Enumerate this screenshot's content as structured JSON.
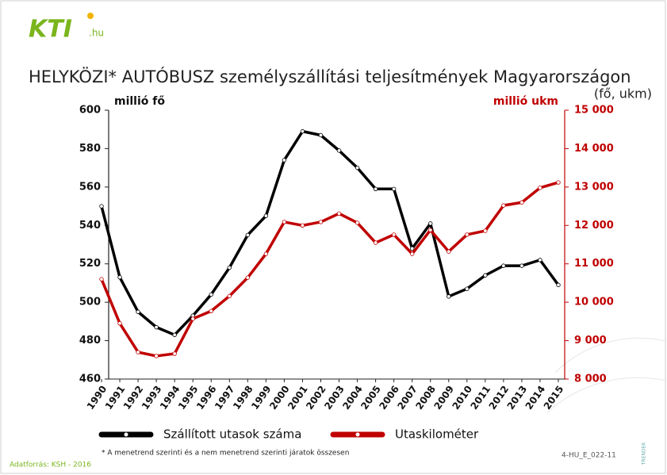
{
  "logo": {
    "text": "KTI",
    "suffix": ".hu"
  },
  "chart_data": {
    "type": "line",
    "title": "HELYKÖZI* AUTÓBUSZ személyszállítási teljesítmények Magyarországon",
    "subtitle": "(fő, ukm)",
    "y_label": "millió fő",
    "y2_label": "millió ukm",
    "categories": [
      "1990",
      "1991",
      "1992",
      "1993",
      "1994",
      "1995",
      "1996",
      "1997",
      "1998",
      "1999",
      "2000",
      "2001",
      "2002",
      "2003",
      "2004",
      "2005",
      "2006",
      "2007",
      "2008",
      "2009",
      "2010",
      "2011",
      "2012",
      "2013",
      "2014",
      "2015"
    ],
    "series": [
      {
        "name": "Szállított utasok száma",
        "color": "#000000",
        "values": [
          550,
          513,
          495,
          487,
          483,
          493,
          504,
          518,
          535,
          545,
          574,
          589,
          587,
          579,
          570,
          559,
          559,
          528,
          541,
          503,
          507,
          514,
          519,
          519,
          522,
          509
        ]
      },
      {
        "name": "Utaskilométer",
        "color": "#c00000",
        "axis": "y2",
        "values": [
          10600,
          9450,
          8700,
          8600,
          8660,
          9570,
          9770,
          10160,
          10640,
          11260,
          12090,
          12000,
          12090,
          12310,
          12070,
          11550,
          11760,
          11260,
          11880,
          11320,
          11760,
          11860,
          12520,
          12600,
          12980,
          13120
        ]
      }
    ],
    "ylim": [
      460,
      600
    ],
    "yticks": [
      460,
      480,
      500,
      520,
      540,
      560,
      580,
      600
    ],
    "y2lim": [
      8000,
      15000
    ],
    "y2ticks": [
      {
        "value": 8000,
        "label": "8 000"
      },
      {
        "value": 9000,
        "label": "9 000"
      },
      {
        "value": 10000,
        "label": "10 000"
      },
      {
        "value": 11000,
        "label": "11 000"
      },
      {
        "value": 12000,
        "label": "12 000"
      },
      {
        "value": 13000,
        "label": "13 000"
      },
      {
        "value": 14000,
        "label": "14 000"
      },
      {
        "value": 15000,
        "label": "15 000"
      }
    ],
    "grid": false,
    "legend": "bottom",
    "footnote": "* A menetrend szerinti és a nem menetrend szerinti járatok összesen"
  },
  "footer": {
    "source": "Adatforrás: KSH - 2016",
    "code": "4-HU_E_022-11",
    "badge": "TRENDEK"
  }
}
